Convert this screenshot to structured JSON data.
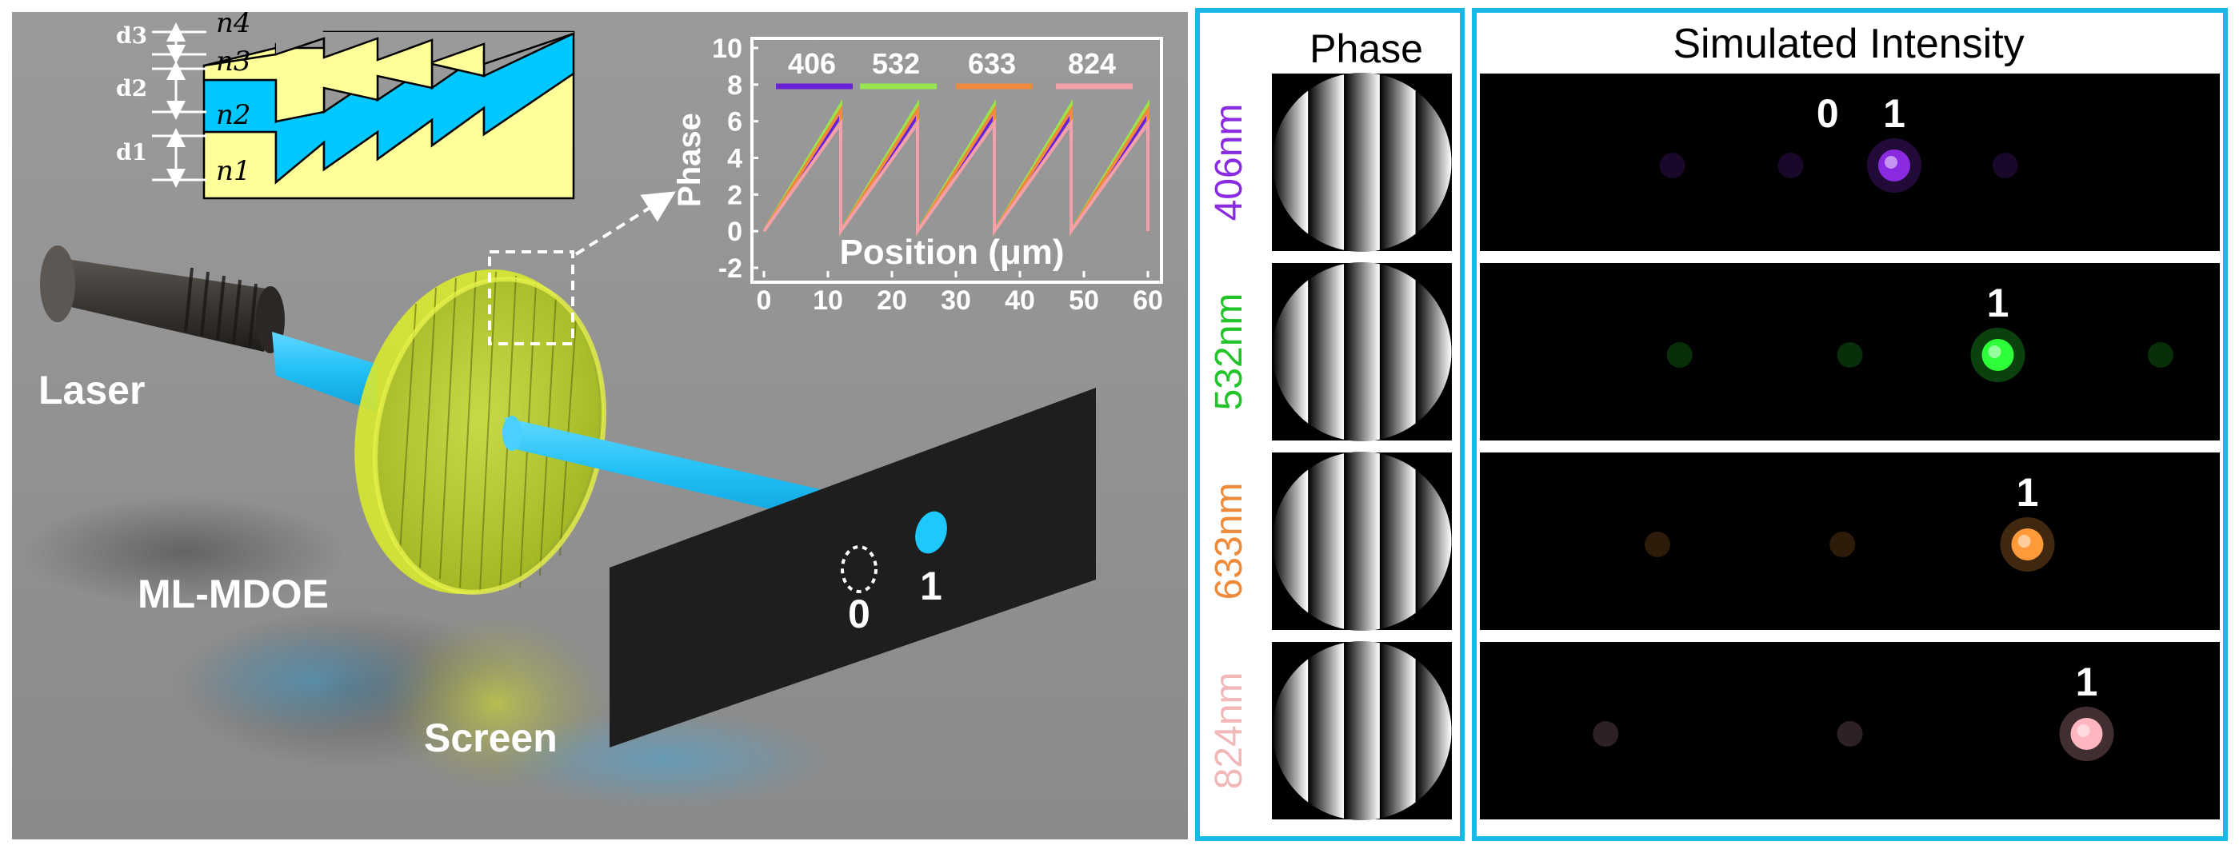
{
  "scene": {
    "laser_label": "Laser",
    "doe_label": "ML-MDOE",
    "screen_label": "Screen",
    "order0_label": "0",
    "order1_label": "1"
  },
  "structure_inset": {
    "thickness_labels": [
      "d3",
      "d2",
      "d1"
    ],
    "index_labels": [
      "n4",
      "n3",
      "n2",
      "n1"
    ],
    "colors": {
      "layer_yellow": "#ffff99",
      "layer_blue": "#00c8ff"
    }
  },
  "chart_data": {
    "type": "line",
    "title": "",
    "xlabel": "Position (μm)",
    "ylabel": "Phase",
    "xlim": [
      0,
      60
    ],
    "ylim": [
      -2,
      10
    ],
    "xticks": [
      0,
      10,
      20,
      30,
      40,
      50,
      60
    ],
    "yticks": [
      -2,
      0,
      2,
      4,
      6,
      8,
      10
    ],
    "period": 12,
    "series": [
      {
        "name": "406",
        "color": "#6a1fd8",
        "peak": 6.3
      },
      {
        "name": "532",
        "color": "#99e64c",
        "peak": 6.9
      },
      {
        "name": "633",
        "color": "#f08a3c",
        "peak": 6.6
      },
      {
        "name": "824",
        "color": "#f4a0a8",
        "peak": 5.9
      }
    ]
  },
  "right_panel": {
    "phase_header": "Phase",
    "intensity_header": "Simulated Intensity",
    "border_color": "#1ab8e6",
    "rows": [
      {
        "wavelength": "406nm",
        "label_color": "#8a2be2",
        "spot_color": "#8a2be2",
        "order0": "0",
        "order1": "1",
        "spot_x": 0.56,
        "ghosts": [
          0.26,
          0.42,
          0.71
        ]
      },
      {
        "wavelength": "532nm",
        "label_color": "#22c42a",
        "spot_color": "#2dff3a",
        "order0": "",
        "order1": "1",
        "spot_x": 0.7,
        "ghosts": [
          0.27,
          0.5,
          0.92
        ]
      },
      {
        "wavelength": "633nm",
        "label_color": "#ee8a3a",
        "spot_color": "#ff9a3a",
        "order0": "",
        "order1": "1",
        "spot_x": 0.74,
        "ghosts": [
          0.24,
          0.49
        ]
      },
      {
        "wavelength": "824nm",
        "label_color": "#f2b7b7",
        "spot_color": "#ffb6c0",
        "order0": "",
        "order1": "1",
        "spot_x": 0.82,
        "ghosts": [
          0.17,
          0.5
        ]
      }
    ]
  }
}
